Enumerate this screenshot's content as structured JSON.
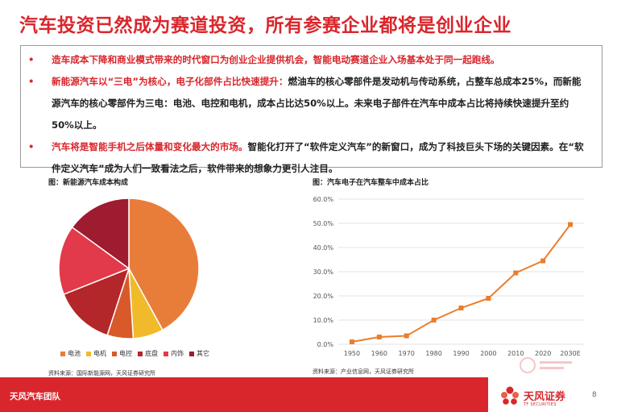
{
  "title": "汽车投资已然成为赛道投资，所有参赛企业都将是创业企业",
  "bullets": [
    {
      "highlight": "造车成本下降和商业模式带来的时代窗口为创业企业提供机会，智能电动赛道企业入场基本处于同一起跑线。",
      "text": ""
    },
    {
      "highlight": "新能源汽车以“三电”为核心，电子化部件占比快速提升：",
      "text": "燃油车的核心零部件是发动机与传动系统，占整车总成本25%，而新能源汽车的核心零部件为三电：电池、电控和电机，成本占比达50%以上。未来电子部件在汽车中成本占比将持续快速提升至约50%以上。"
    },
    {
      "highlight": "汽车将是智能手机之后体量和变化最大的市场。",
      "text": "智能化打开了“软件定义汽车”的新窗口，成为了科技巨头下场的关键因素。在“软件定义汽车”成为人们一致看法之后，软件带来的想象力更引人注目。"
    }
  ],
  "pie_caption": "图：新能源汽车成本构成",
  "line_caption": "图：汽车电子在汽车整车中成本占比",
  "pie_source": "资料来源：国际新能源网，天风证券研究所",
  "line_source": "资料来源：产业信息网，天风证券研究所",
  "footer": {
    "team": "天风汽车团队",
    "brand": "天风证券",
    "brand_sub": "TF SECURITIES",
    "page": "8"
  },
  "chart_data": [
    {
      "type": "pie",
      "title": "图：新能源汽车成本构成",
      "labels": [
        "电池",
        "电机",
        "电控",
        "底盘",
        "内饰",
        "其它"
      ],
      "values": [
        42,
        7,
        6,
        14,
        16,
        15
      ],
      "colors": [
        "#e87d3a",
        "#f1ba2a",
        "#d85a2a",
        "#b3262a",
        "#e23a4a",
        "#9e1b30"
      ],
      "legend_position": "bottom"
    },
    {
      "type": "line",
      "title": "图：汽车电子在汽车整车中成本占比",
      "x": [
        "1950",
        "1960",
        "1970",
        "1980",
        "1990",
        "2000",
        "2010",
        "2020",
        "2030E"
      ],
      "y": [
        0.01,
        0.03,
        0.035,
        0.1,
        0.15,
        0.19,
        0.295,
        0.345,
        0.495
      ],
      "y_ticks": [
        "0.0%",
        "10.0%",
        "20.0%",
        "30.0%",
        "40.0%",
        "50.0%",
        "60.0%"
      ],
      "ylim": [
        0,
        0.6
      ],
      "color": "#ea7d2d",
      "grid": true
    }
  ]
}
